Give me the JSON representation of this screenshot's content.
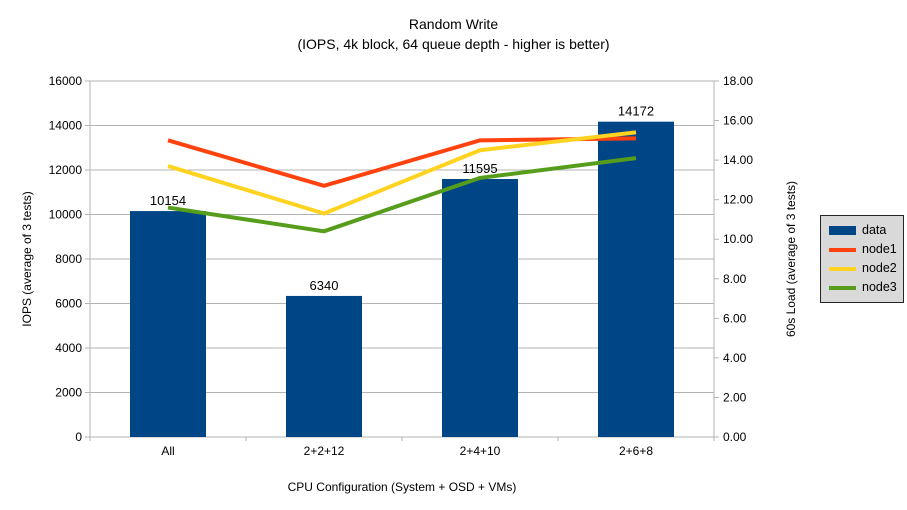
{
  "chart": {
    "title": "Random Write",
    "subtitle": "(IOPS, 4k block, 64 queue depth - higher is better)"
  },
  "chart_data": {
    "type": "bar",
    "title": "Random Write",
    "subtitle": "(IOPS, 4k block, 64 queue depth - higher is better)",
    "categories": [
      "All",
      "2+2+12",
      "2+4+10",
      "2+6+8"
    ],
    "x_axis": {
      "title": "CPU Configuration (System + OSD + VMs)"
    },
    "y_left": {
      "title": "IOPS (average of 3 tests)",
      "min": 0,
      "max": 16000,
      "ticks": [
        0,
        2000,
        4000,
        6000,
        8000,
        10000,
        12000,
        14000,
        16000
      ],
      "tick_labels": [
        "0",
        "2000",
        "4000",
        "6000",
        "8000",
        "10000",
        "12000",
        "14000",
        "16000"
      ]
    },
    "y_right": {
      "title": "60s Load (average of 3 tests)",
      "min": 0,
      "max": 18,
      "ticks": [
        0,
        2,
        4,
        6,
        8,
        10,
        12,
        14,
        16,
        18
      ],
      "tick_labels": [
        "0.00",
        "2.00",
        "4.00",
        "6.00",
        "8.00",
        "10.00",
        "12.00",
        "14.00",
        "16.00",
        "18.00"
      ]
    },
    "grid": true,
    "legend_position": "right",
    "series": [
      {
        "name": "data",
        "type": "bar",
        "axis": "left",
        "color": "#004586",
        "values": [
          10154,
          6340,
          11595,
          14172
        ],
        "value_labels": [
          "10154",
          "6340",
          "11595",
          "14172"
        ]
      },
      {
        "name": "node1",
        "type": "line",
        "axis": "right",
        "color": "#ff420e",
        "values": [
          15.0,
          12.7,
          15.0,
          15.1
        ]
      },
      {
        "name": "node2",
        "type": "line",
        "axis": "right",
        "color": "#ffd320",
        "values": [
          13.7,
          11.3,
          14.5,
          15.4
        ]
      },
      {
        "name": "node3",
        "type": "line",
        "axis": "right",
        "color": "#579d1c",
        "values": [
          11.6,
          10.4,
          13.1,
          14.1
        ]
      }
    ],
    "colors": {
      "gridline": "#b3b3b3",
      "axis": "#b3b3b3",
      "text": "#000000",
      "legend_bg": "#d9d9d9"
    }
  },
  "legend": {
    "items": [
      {
        "label": "data",
        "color": "#004586",
        "type": "bar"
      },
      {
        "label": "node1",
        "color": "#ff420e",
        "type": "line"
      },
      {
        "label": "node2",
        "color": "#ffd320",
        "type": "line"
      },
      {
        "label": "node3",
        "color": "#579d1c",
        "type": "line"
      }
    ]
  }
}
